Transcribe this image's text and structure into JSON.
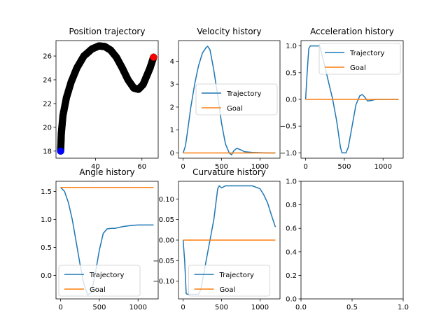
{
  "chart_data": [
    {
      "type": "scatter",
      "title": "Position trajectory",
      "xlim": [
        23,
        67
      ],
      "ylim": [
        17.4,
        27.3
      ],
      "xticks": [
        40,
        60
      ],
      "yticks": [
        18,
        20,
        22,
        24,
        26
      ],
      "grid": false,
      "legend": "none",
      "path_color": "#000000",
      "x": [
        25.0,
        25.3,
        26.0,
        27.5,
        29.5,
        32.0,
        35.0,
        38.5,
        41.5,
        44.0,
        46.5,
        49.0,
        51.5,
        54.0,
        56.5,
        58.5,
        60.5,
        62.0,
        63.5,
        65.0
      ],
      "y": [
        18.0,
        19.5,
        21.0,
        22.5,
        23.8,
        25.0,
        26.0,
        26.6,
        26.85,
        26.8,
        26.5,
        25.9,
        25.0,
        24.0,
        23.3,
        23.2,
        23.6,
        24.3,
        25.0,
        25.9
      ],
      "start": {
        "x": 25.0,
        "y": 18.0,
        "color": "#0000ff"
      },
      "end": {
        "x": 65.0,
        "y": 25.9,
        "color": "#ff0000"
      }
    },
    {
      "type": "line",
      "title": "Velocity history",
      "xlim": [
        -60,
        1260
      ],
      "ylim": [
        -0.23,
        4.9
      ],
      "xticks": [
        0,
        500,
        1000
      ],
      "yticks": [
        0,
        1,
        2,
        3,
        4
      ],
      "grid": false,
      "legend": "center-right",
      "series": [
        {
          "name": "Trajectory",
          "color": "#1f77b4",
          "x": [
            0,
            30,
            60,
            100,
            150,
            200,
            250,
            300,
            320,
            350,
            400,
            450,
            500,
            550,
            600,
            630,
            660,
            700,
            740,
            800,
            900,
            1000,
            1100,
            1200
          ],
          "y": [
            0,
            0.3,
            1.0,
            2.0,
            3.0,
            3.8,
            4.35,
            4.6,
            4.65,
            4.5,
            3.6,
            2.5,
            1.3,
            0.4,
            0.0,
            -0.08,
            0.1,
            0.2,
            0.15,
            0.05,
            0.02,
            0.01,
            0.0,
            0.0
          ]
        },
        {
          "name": "Goal",
          "color": "#ff7f0e",
          "x": [
            0,
            1200
          ],
          "y": [
            0,
            0
          ]
        }
      ]
    },
    {
      "type": "line",
      "title": "Acceleration history",
      "xlim": [
        -60,
        1260
      ],
      "ylim": [
        -1.1,
        1.1
      ],
      "xticks": [
        0,
        500,
        1000
      ],
      "yticks": [
        -1.0,
        -0.5,
        0.0,
        0.5,
        1.0
      ],
      "grid": false,
      "legend": "top-right",
      "series": [
        {
          "name": "Trajectory",
          "color": "#1f77b4",
          "x": [
            0,
            20,
            40,
            60,
            80,
            180,
            200,
            250,
            300,
            350,
            400,
            450,
            470,
            520,
            550,
            600,
            650,
            700,
            730,
            760,
            800,
            850,
            900,
            1000,
            1200
          ],
          "y": [
            0,
            0.5,
            0.95,
            1.0,
            1.0,
            1.0,
            0.9,
            0.6,
            0.3,
            0.0,
            -0.4,
            -0.9,
            -1.0,
            -1.0,
            -0.9,
            -0.5,
            -0.1,
            0.07,
            0.09,
            0.05,
            -0.03,
            -0.02,
            0.0,
            0.0,
            0.0
          ]
        },
        {
          "name": "Goal",
          "color": "#ff7f0e",
          "x": [
            0,
            1200
          ],
          "y": [
            0,
            0
          ]
        }
      ]
    },
    {
      "type": "line",
      "title": "Angle history",
      "xlim": [
        -60,
        1260
      ],
      "ylim": [
        -0.42,
        1.68
      ],
      "xticks": [
        0,
        500,
        1000
      ],
      "yticks": [
        0.0,
        0.5,
        1.0,
        1.5
      ],
      "grid": false,
      "legend": "bottom-left",
      "series": [
        {
          "name": "Trajectory",
          "color": "#1f77b4",
          "x": [
            0,
            50,
            100,
            150,
            200,
            250,
            300,
            350,
            400,
            450,
            500,
            550,
            600,
            650,
            700,
            800,
            900,
            1000,
            1100,
            1200
          ],
          "y": [
            1.57,
            1.5,
            1.3,
            1.0,
            0.6,
            0.2,
            -0.15,
            -0.35,
            -0.3,
            0.05,
            0.45,
            0.75,
            0.83,
            0.84,
            0.84,
            0.87,
            0.89,
            0.9,
            0.9,
            0.9
          ]
        },
        {
          "name": "Goal",
          "color": "#ff7f0e",
          "x": [
            0,
            1200
          ],
          "y": [
            1.57,
            1.57
          ]
        }
      ]
    },
    {
      "type": "line",
      "title": "Curvature history",
      "xlim": [
        -60,
        1260
      ],
      "ylim": [
        -0.143,
        0.143
      ],
      "xticks": [
        0,
        500,
        1000
      ],
      "yticks": [
        -0.1,
        -0.05,
        0.0,
        0.05,
        0.1
      ],
      "grid": false,
      "legend": "bottom-center",
      "series": [
        {
          "name": "Trajectory",
          "color": "#1f77b4",
          "x": [
            0,
            20,
            40,
            60,
            200,
            230,
            300,
            400,
            450,
            470,
            500,
            550,
            700,
            800,
            900,
            1000,
            1050,
            1100,
            1150,
            1200
          ],
          "y": [
            0,
            -0.05,
            -0.13,
            -0.132,
            -0.132,
            -0.12,
            -0.05,
            0.05,
            0.125,
            0.132,
            0.127,
            0.132,
            0.132,
            0.132,
            0.132,
            0.125,
            0.11,
            0.09,
            0.06,
            0.032
          ]
        },
        {
          "name": "Goal",
          "color": "#ff7f0e",
          "x": [
            0,
            1200
          ],
          "y": [
            0,
            0
          ]
        }
      ]
    },
    {
      "type": "line",
      "title": "",
      "xlim": [
        0,
        1
      ],
      "ylim": [
        0,
        1
      ],
      "xticks": [
        0.0,
        0.5,
        1.0
      ],
      "yticks": [
        0.0,
        0.2,
        0.4,
        0.6,
        0.8,
        1.0
      ],
      "grid": false,
      "legend": "none",
      "series": []
    }
  ]
}
